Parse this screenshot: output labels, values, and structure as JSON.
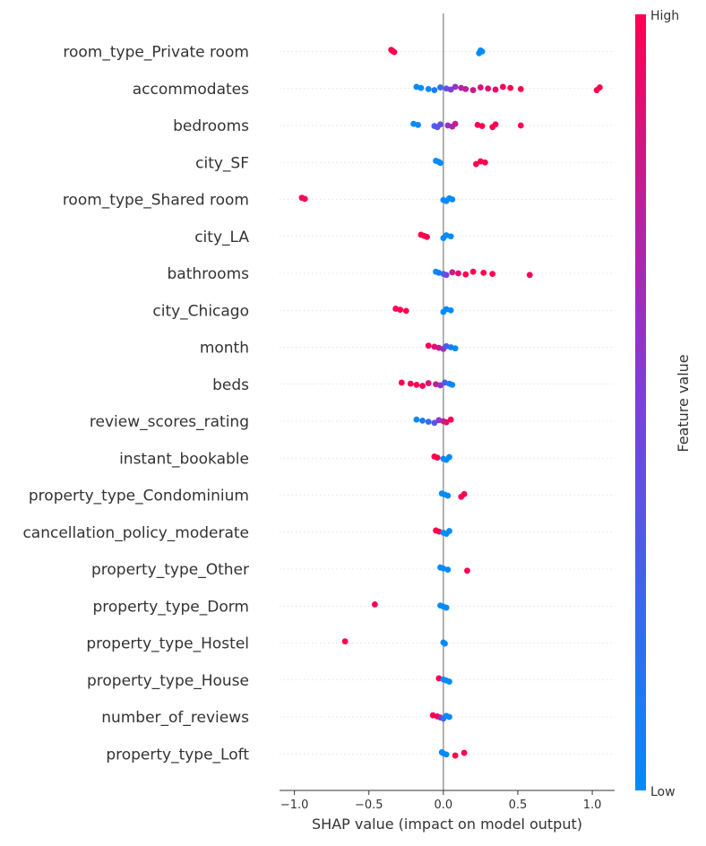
{
  "chart_data": {
    "type": "scatter",
    "subtype": "shap-beeswarm",
    "xlabel": "SHAP value (impact on model output)",
    "xlim": [
      -1.1,
      1.15
    ],
    "xticks": [
      {
        "value": -1.0,
        "label": "−1.0"
      },
      {
        "value": -0.5,
        "label": "−0.5"
      },
      {
        "value": 0.0,
        "label": "0.0"
      },
      {
        "value": 0.5,
        "label": "0.5"
      },
      {
        "value": 1.0,
        "label": "1.0"
      }
    ],
    "colorbar": {
      "label": "Feature value",
      "high_label": "High",
      "low_label": "Low",
      "low_color": "#008bfb",
      "mid_color": "#7b3fe0",
      "high_color": "#ff0051"
    },
    "features": [
      {
        "name": "room_type_Private room",
        "points": [
          [
            -0.35,
            1
          ],
          [
            -0.34,
            1
          ],
          [
            -0.33,
            1
          ],
          [
            0.24,
            0
          ],
          [
            0.25,
            0
          ],
          [
            0.26,
            0
          ]
        ]
      },
      {
        "name": "accommodates",
        "points": [
          [
            -0.18,
            0
          ],
          [
            -0.15,
            0
          ],
          [
            -0.1,
            0
          ],
          [
            -0.06,
            0.1
          ],
          [
            -0.02,
            0.2
          ],
          [
            0.02,
            0.4
          ],
          [
            0.05,
            0.5
          ],
          [
            0.08,
            0.6
          ],
          [
            0.12,
            0.7
          ],
          [
            0.15,
            0.75
          ],
          [
            0.2,
            0.8
          ],
          [
            0.25,
            0.85
          ],
          [
            0.3,
            0.9
          ],
          [
            0.35,
            0.9
          ],
          [
            0.4,
            0.95
          ],
          [
            0.45,
            1
          ],
          [
            0.52,
            1
          ],
          [
            1.03,
            1
          ],
          [
            1.05,
            1
          ]
        ]
      },
      {
        "name": "bedrooms",
        "points": [
          [
            -0.2,
            0
          ],
          [
            -0.17,
            0
          ],
          [
            -0.06,
            0.3
          ],
          [
            -0.04,
            0.35
          ],
          [
            -0.02,
            0.4
          ],
          [
            0.03,
            0.6
          ],
          [
            0.06,
            0.7
          ],
          [
            0.08,
            0.75
          ],
          [
            0.23,
            1
          ],
          [
            0.26,
            1
          ],
          [
            0.33,
            1
          ],
          [
            0.35,
            1
          ],
          [
            0.52,
            1
          ]
        ]
      },
      {
        "name": "city_SF",
        "points": [
          [
            -0.05,
            0
          ],
          [
            -0.03,
            0
          ],
          [
            -0.02,
            0
          ],
          [
            0.22,
            1
          ],
          [
            0.25,
            1
          ],
          [
            0.28,
            1
          ]
        ]
      },
      {
        "name": "room_type_Shared room",
        "points": [
          [
            -0.95,
            1
          ],
          [
            -0.93,
            1
          ],
          [
            0.0,
            0
          ],
          [
            0.02,
            0
          ],
          [
            0.04,
            0
          ],
          [
            0.06,
            0
          ]
        ]
      },
      {
        "name": "city_LA",
        "points": [
          [
            -0.15,
            1
          ],
          [
            -0.13,
            1
          ],
          [
            -0.11,
            1
          ],
          [
            0.0,
            0
          ],
          [
            0.02,
            0
          ],
          [
            0.05,
            0
          ]
        ]
      },
      {
        "name": "bathrooms",
        "points": [
          [
            -0.05,
            0
          ],
          [
            -0.03,
            0.1
          ],
          [
            0.0,
            0.2
          ],
          [
            0.02,
            0.5
          ],
          [
            0.06,
            0.8
          ],
          [
            0.1,
            0.9
          ],
          [
            0.15,
            1
          ],
          [
            0.2,
            1
          ],
          [
            0.27,
            1
          ],
          [
            0.33,
            1
          ],
          [
            0.58,
            1
          ]
        ]
      },
      {
        "name": "city_Chicago",
        "points": [
          [
            -0.32,
            1
          ],
          [
            -0.29,
            1
          ],
          [
            -0.25,
            1
          ],
          [
            0.0,
            0
          ],
          [
            0.02,
            0
          ],
          [
            0.05,
            0
          ]
        ]
      },
      {
        "name": "month",
        "points": [
          [
            -0.1,
            1
          ],
          [
            -0.06,
            0.9
          ],
          [
            -0.03,
            0.8
          ],
          [
            0.0,
            0.6
          ],
          [
            0.02,
            0.3
          ],
          [
            0.05,
            0.1
          ],
          [
            0.08,
            0
          ]
        ]
      },
      {
        "name": "beds",
        "points": [
          [
            -0.28,
            1
          ],
          [
            -0.22,
            1
          ],
          [
            -0.18,
            1
          ],
          [
            -0.14,
            0.95
          ],
          [
            -0.1,
            0.9
          ],
          [
            -0.05,
            0.8
          ],
          [
            -0.02,
            0.6
          ],
          [
            0.01,
            0.3
          ],
          [
            0.04,
            0.1
          ],
          [
            0.06,
            0
          ]
        ]
      },
      {
        "name": "review_scores_rating",
        "points": [
          [
            -0.18,
            0
          ],
          [
            -0.14,
            0.1
          ],
          [
            -0.1,
            0.2
          ],
          [
            -0.06,
            0.35
          ],
          [
            -0.03,
            0.55
          ],
          [
            0.0,
            0.75
          ],
          [
            0.02,
            0.9
          ],
          [
            0.05,
            1
          ]
        ]
      },
      {
        "name": "instant_bookable",
        "points": [
          [
            -0.06,
            1
          ],
          [
            -0.04,
            1
          ],
          [
            0.0,
            0
          ],
          [
            0.02,
            0
          ],
          [
            0.04,
            0
          ]
        ]
      },
      {
        "name": "property_type_Condominium",
        "points": [
          [
            -0.01,
            0
          ],
          [
            0.01,
            0
          ],
          [
            0.03,
            0
          ],
          [
            0.12,
            1
          ],
          [
            0.14,
            1
          ]
        ]
      },
      {
        "name": "cancellation_policy_moderate",
        "points": [
          [
            -0.05,
            1
          ],
          [
            -0.03,
            1
          ],
          [
            0.0,
            0
          ],
          [
            0.02,
            0
          ],
          [
            0.04,
            0
          ]
        ]
      },
      {
        "name": "property_type_Other",
        "points": [
          [
            -0.02,
            0
          ],
          [
            0.0,
            0
          ],
          [
            0.03,
            0
          ],
          [
            0.16,
            1
          ]
        ]
      },
      {
        "name": "property_type_Dorm",
        "points": [
          [
            -0.46,
            1
          ],
          [
            -0.02,
            0
          ],
          [
            0.0,
            0
          ],
          [
            0.02,
            0
          ]
        ]
      },
      {
        "name": "property_type_Hostel",
        "points": [
          [
            -0.66,
            1
          ],
          [
            0.0,
            0
          ],
          [
            0.01,
            0
          ]
        ]
      },
      {
        "name": "property_type_House",
        "points": [
          [
            -0.03,
            1
          ],
          [
            0.0,
            0
          ],
          [
            0.02,
            0
          ],
          [
            0.04,
            0
          ]
        ]
      },
      {
        "name": "number_of_reviews",
        "points": [
          [
            -0.07,
            1
          ],
          [
            -0.04,
            1
          ],
          [
            -0.02,
            0.7
          ],
          [
            0.0,
            0.2
          ],
          [
            0.02,
            0
          ],
          [
            0.04,
            0
          ]
        ]
      },
      {
        "name": "property_type_Loft",
        "points": [
          [
            -0.01,
            0
          ],
          [
            0.0,
            0
          ],
          [
            0.02,
            0
          ],
          [
            0.08,
            1
          ],
          [
            0.14,
            1
          ]
        ]
      }
    ]
  }
}
